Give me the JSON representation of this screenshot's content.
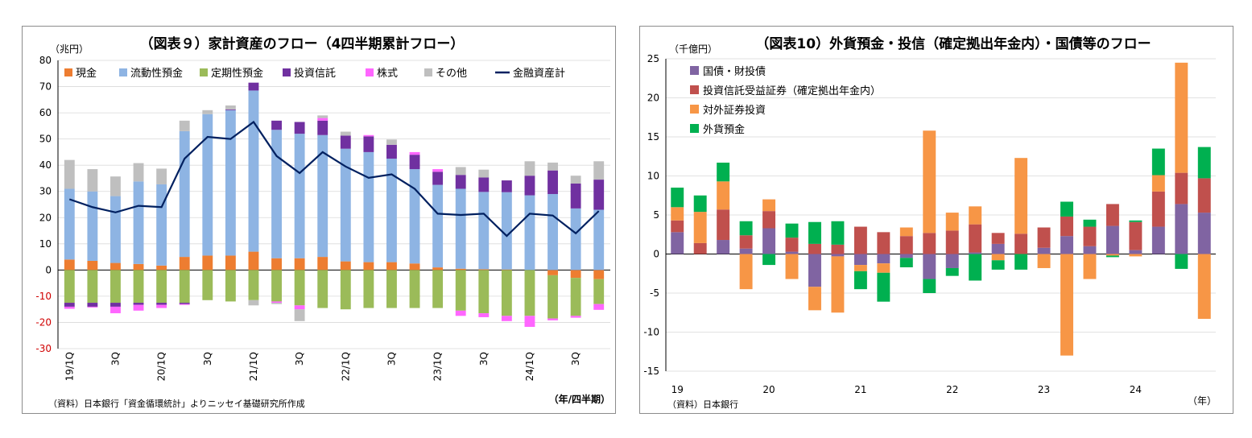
{
  "charts": [
    {
      "title": "（図表９）家計資産のフロー（4四半期累計フロー）",
      "unit_label": "（兆円）",
      "source": "（資料）日本銀行「資金循環統計」よりニッセイ基礎研究所作成",
      "xunit_label": "（年/四半期）"
    },
    {
      "title": "（図表10）外貨預金・投信（確定拠出年金内）・国債等のフロー",
      "unit_label": "（千億円）",
      "source": "（資料）日本銀行",
      "xunit_label": "（年）"
    }
  ],
  "chart_data": [
    {
      "type": "bar",
      "stacked": true,
      "title": "（図表９）家計資産のフロー（4四半期累計フロー）",
      "ylabel": "（兆円）",
      "xlabel": "（年/四半期）",
      "ylim": [
        -30,
        80
      ],
      "yticks": [
        -30,
        -20,
        -10,
        0,
        10,
        20,
        30,
        40,
        50,
        60,
        70,
        80
      ],
      "negative_tick_color": "#d00000",
      "categories": [
        "19/1Q",
        "19/2Q",
        "19/3Q",
        "19/4Q",
        "20/1Q",
        "20/2Q",
        "20/3Q",
        "20/4Q",
        "21/1Q",
        "21/2Q",
        "21/3Q",
        "21/4Q",
        "22/1Q",
        "22/2Q",
        "22/3Q",
        "22/4Q",
        "23/1Q",
        "23/2Q",
        "23/3Q",
        "23/4Q",
        "24/1Q",
        "24/2Q",
        "24/3Q",
        "24/4Q"
      ],
      "tick_labels": [
        "19/1Q",
        "",
        "3Q",
        "",
        "20/1Q",
        "",
        "3Q",
        "",
        "21/1Q",
        "",
        "3Q",
        "",
        "22/1Q",
        "",
        "3Q",
        "",
        "23/1Q",
        "",
        "3Q",
        "",
        "24/1Q",
        "",
        "3Q",
        ""
      ],
      "series": [
        {
          "name": "現金",
          "color": "#ed7d31",
          "values": [
            4,
            3.5,
            2.7,
            2.3,
            1.7,
            5,
            5.5,
            5.5,
            7,
            4.5,
            4.5,
            5,
            3.3,
            3,
            3,
            2.5,
            1,
            0.5,
            0.3,
            0.2,
            0,
            -2,
            -3,
            -3.5
          ]
        },
        {
          "name": "流動性預金",
          "color": "#8eb4e3",
          "values": [
            27,
            26.5,
            25.5,
            31.5,
            31,
            48,
            54,
            55.5,
            61.5,
            49,
            47.5,
            46.5,
            43,
            42,
            39.5,
            36,
            31.5,
            30.5,
            29.5,
            29.5,
            28.5,
            29,
            23.5,
            23
          ]
        },
        {
          "name": "定期性預金",
          "color": "#9bbb59",
          "values": [
            -12.5,
            -12.5,
            -12.5,
            -12.5,
            -12.5,
            -12.5,
            -11.5,
            -12,
            -11.5,
            -12,
            -13.5,
            -14.5,
            -15,
            -14.5,
            -14.5,
            -14.5,
            -14.5,
            -15.5,
            -16.5,
            -17.5,
            -17.5,
            -16.5,
            -14.5,
            -9.5
          ]
        },
        {
          "name": "投資信託",
          "color": "#7030a0",
          "values": [
            -1.5,
            -1.5,
            -1.5,
            -0.8,
            -0.8,
            -0.5,
            0,
            0.3,
            3,
            3.5,
            4.5,
            5.5,
            5,
            6,
            5.3,
            5.5,
            5,
            5.3,
            5.5,
            4.5,
            7.5,
            9,
            9.5,
            11.5
          ]
        },
        {
          "name": "株式",
          "color": "#ff66ff",
          "values": [
            -0.8,
            -0.3,
            -2.5,
            -2.2,
            -1.2,
            -0.3,
            0,
            0,
            0,
            -0.5,
            -1.5,
            1,
            0,
            0.5,
            0,
            1,
            1,
            -2,
            -1.5,
            -2,
            -4.2,
            -0.7,
            -0.7,
            -2.2
          ]
        },
        {
          "name": "その他",
          "color": "#bfbfbf",
          "values": [
            11,
            8.5,
            7.5,
            7,
            6,
            4,
            1.5,
            1.5,
            -2,
            -0.5,
            -4.5,
            1,
            1.5,
            0,
            2,
            0,
            0,
            3,
            3,
            0,
            5.5,
            3,
            3,
            7
          ]
        },
        {
          "name": "金融資産計",
          "color": "#002060",
          "type": "line",
          "values": [
            27,
            24,
            22,
            24.5,
            24,
            42.5,
            50.8,
            50,
            56.5,
            43.5,
            37,
            45,
            39.5,
            35.2,
            36.5,
            31,
            21.5,
            21,
            21.5,
            13,
            21.5,
            20.8,
            14,
            22.5
          ]
        }
      ]
    },
    {
      "type": "bar",
      "stacked": true,
      "title": "（図表10）外貨預金・投信（確定拠出年金内）・国債等のフロー",
      "ylabel": "（千億円）",
      "xlabel": "（年）",
      "ylim": [
        -15,
        25
      ],
      "yticks": [
        -15,
        -10,
        -5,
        0,
        5,
        10,
        15,
        20,
        25
      ],
      "categories": [
        "19/1Q",
        "19/2Q",
        "19/3Q",
        "19/4Q",
        "20/1Q",
        "20/2Q",
        "20/3Q",
        "20/4Q",
        "21/1Q",
        "21/2Q",
        "21/3Q",
        "21/4Q",
        "22/1Q",
        "22/2Q",
        "22/3Q",
        "22/4Q",
        "23/1Q",
        "23/2Q",
        "23/3Q",
        "23/4Q",
        "24/1Q",
        "24/2Q",
        "24/3Q",
        "24/4Q"
      ],
      "year_labels": [
        "19",
        "20",
        "21",
        "22",
        "23",
        "24"
      ],
      "series": [
        {
          "name": "国債・財投債",
          "color": "#8064a2",
          "values": [
            2.8,
            0,
            1.8,
            0.7,
            3.3,
            0.3,
            -4.2,
            -0.3,
            -1.4,
            -1.2,
            -0.5,
            -3.2,
            -1.8,
            0.2,
            1.3,
            0,
            0.8,
            2.3,
            1,
            3.6,
            0.5,
            3.5,
            6.4,
            5.3
          ]
        },
        {
          "name": "投資信託受益証券（確定拠出年金内）",
          "color": "#c0504d",
          "values": [
            1.5,
            1.4,
            3.9,
            1.7,
            2.2,
            1.8,
            1.3,
            1.2,
            3.5,
            2.8,
            2.3,
            2.7,
            3,
            3.6,
            1.4,
            2.6,
            2.6,
            2.5,
            2.5,
            2.8,
            3.6,
            4.5,
            4,
            4.4
          ]
        },
        {
          "name": "対外証券投資",
          "color": "#f79646",
          "values": [
            1.7,
            4,
            3.6,
            -4.5,
            1.5,
            -3.2,
            -3,
            -7.2,
            -0.8,
            -1.2,
            1.1,
            13.1,
            2.3,
            2.3,
            -0.8,
            9.7,
            -1.8,
            -13,
            -3.2,
            -0.2,
            -0.3,
            2.1,
            14.1,
            -8.3
          ]
        },
        {
          "name": "外貨預金",
          "color": "#00b050",
          "values": [
            2.5,
            2.1,
            2.4,
            1.8,
            -1.4,
            1.8,
            2.8,
            3,
            -2.3,
            -3.7,
            -1.2,
            -1.8,
            -1,
            -3.4,
            -1.2,
            -2,
            0,
            1.9,
            0.9,
            -0.2,
            0.2,
            3.4,
            -1.9,
            4
          ]
        }
      ]
    }
  ]
}
